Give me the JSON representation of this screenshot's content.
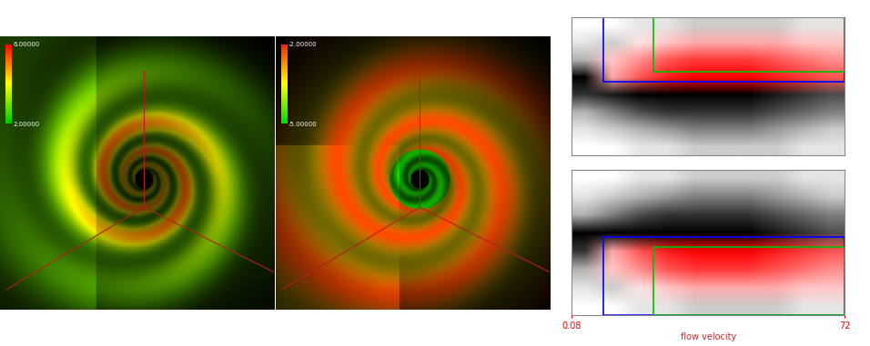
{
  "chart_data": [
    {
      "type": "volume_rendering",
      "colorbar_colors": [
        "#00c800",
        "#ffff00",
        "#ff0000"
      ],
      "colorbar_range": [
        2,
        6
      ],
      "colorbar_ticks": [
        {
          "value": 6,
          "label": "6.00000"
        },
        {
          "value": 2,
          "label": "2.00000"
        }
      ]
    },
    {
      "type": "volume_rendering",
      "colorbar_colors": [
        "#00e000",
        "#ffff00",
        "#ff2000"
      ],
      "colorbar_range": [
        -5,
        -2
      ],
      "colorbar_ticks": [
        {
          "value": -2,
          "label": "-2.00000"
        },
        {
          "value": -5,
          "label": "-5.00000"
        }
      ]
    },
    {
      "type": "scatter_density",
      "xlim": [
        0.08,
        72
      ],
      "ylim": [
        -1,
        1
      ],
      "tick_labels": false,
      "x_bins": [
        0.08,
        7.27,
        14.46,
        21.66,
        28.85,
        36.04,
        43.23,
        50.42,
        57.62,
        64.81,
        72
      ],
      "y_bins": [
        -1,
        -0.75,
        -0.5,
        -0.25,
        0,
        0.25,
        0.5,
        0.75,
        1
      ],
      "density": [
        [
          0,
          0,
          1,
          1,
          2,
          2,
          2,
          2,
          1,
          1
        ],
        [
          1,
          2,
          3,
          4,
          5,
          5,
          5,
          4,
          3,
          2
        ],
        [
          3,
          5,
          7,
          8,
          8,
          8,
          8,
          7,
          6,
          5
        ],
        [
          8,
          9,
          10,
          10,
          10,
          10,
          10,
          9,
          8,
          7
        ],
        [
          10,
          10,
          10,
          10,
          10,
          10,
          10,
          9,
          8,
          7
        ],
        [
          3,
          5,
          7,
          8,
          8,
          8,
          8,
          7,
          6,
          5
        ],
        [
          1,
          2,
          3,
          4,
          5,
          5,
          5,
          4,
          3,
          2
        ],
        [
          0,
          0,
          1,
          1,
          2,
          2,
          2,
          2,
          1,
          1
        ]
      ],
      "highlight": [
        [
          0,
          0,
          0,
          0,
          0,
          0,
          0,
          0,
          0,
          0
        ],
        [
          0,
          0,
          0,
          0,
          0,
          0,
          0,
          0,
          0,
          0
        ],
        [
          0,
          0,
          0,
          0,
          0,
          0,
          0,
          0,
          0,
          0
        ],
        [
          0,
          0,
          0,
          0,
          0,
          0,
          0,
          0,
          0,
          0
        ],
        [
          0,
          3,
          6,
          8,
          9,
          9,
          9,
          8,
          7,
          6
        ],
        [
          0,
          2,
          4,
          6,
          7,
          7,
          7,
          6,
          5,
          4
        ],
        [
          0,
          0,
          1,
          2,
          3,
          3,
          3,
          3,
          2,
          2
        ],
        [
          0,
          0,
          0,
          0,
          0,
          0,
          0,
          0,
          0,
          0
        ]
      ],
      "highlight_color": "#ff0000",
      "selections": [
        {
          "color": "#0000ff",
          "x": [
            8.4,
            72
          ],
          "y": [
            0.07,
            1
          ]
        },
        {
          "color": "#00c000",
          "x": [
            21.6,
            72
          ],
          "y": [
            0.21,
            1
          ]
        }
      ]
    },
    {
      "type": "scatter_density",
      "xlabel": "flow velocity",
      "xlim": [
        0.08,
        72
      ],
      "ylim": [
        -1,
        1
      ],
      "tick_labels": "x",
      "xticks": [
        0.08,
        72
      ],
      "x_bins": [
        0.08,
        7.27,
        14.46,
        21.66,
        28.85,
        36.04,
        43.23,
        50.42,
        57.62,
        64.81,
        72
      ],
      "y_bins": [
        -1,
        -0.75,
        -0.5,
        -0.25,
        0,
        0.25,
        0.5,
        0.75,
        1
      ],
      "density": [
        [
          0,
          0,
          1,
          1,
          2,
          2,
          2,
          2,
          1,
          1
        ],
        [
          1,
          2,
          3,
          4,
          5,
          5,
          5,
          4,
          3,
          2
        ],
        [
          3,
          5,
          7,
          8,
          8,
          8,
          8,
          7,
          6,
          5
        ],
        [
          8,
          9,
          10,
          10,
          10,
          10,
          10,
          9,
          8,
          7
        ],
        [
          10,
          10,
          10,
          10,
          10,
          10,
          10,
          9,
          8,
          7
        ],
        [
          3,
          5,
          7,
          8,
          8,
          8,
          8,
          7,
          6,
          5
        ],
        [
          1,
          2,
          3,
          4,
          5,
          5,
          5,
          4,
          3,
          2
        ],
        [
          0,
          0,
          1,
          1,
          2,
          2,
          2,
          2,
          1,
          1
        ]
      ],
      "highlight": [
        [
          0,
          0,
          0,
          0,
          0,
          0,
          0,
          0,
          0,
          0
        ],
        [
          0,
          0,
          1,
          2,
          3,
          3,
          3,
          3,
          2,
          2
        ],
        [
          0,
          2,
          4,
          6,
          7,
          7,
          7,
          6,
          5,
          4
        ],
        [
          0,
          3,
          6,
          8,
          9,
          9,
          9,
          8,
          7,
          6
        ],
        [
          0,
          0,
          0,
          0,
          0,
          0,
          0,
          0,
          0,
          0
        ],
        [
          0,
          0,
          0,
          0,
          0,
          0,
          0,
          0,
          0,
          0
        ],
        [
          0,
          0,
          0,
          0,
          0,
          0,
          0,
          0,
          0,
          0
        ],
        [
          0,
          0,
          0,
          0,
          0,
          0,
          0,
          0,
          0,
          0
        ]
      ],
      "highlight_color": "#ff0000",
      "selections": [
        {
          "color": "#0000ff",
          "x": [
            8.4,
            72
          ],
          "y": [
            -1,
            0.07
          ]
        },
        {
          "color": "#00c000",
          "x": [
            21.6,
            72
          ],
          "y": [
            -1,
            -0.06
          ]
        }
      ]
    }
  ]
}
